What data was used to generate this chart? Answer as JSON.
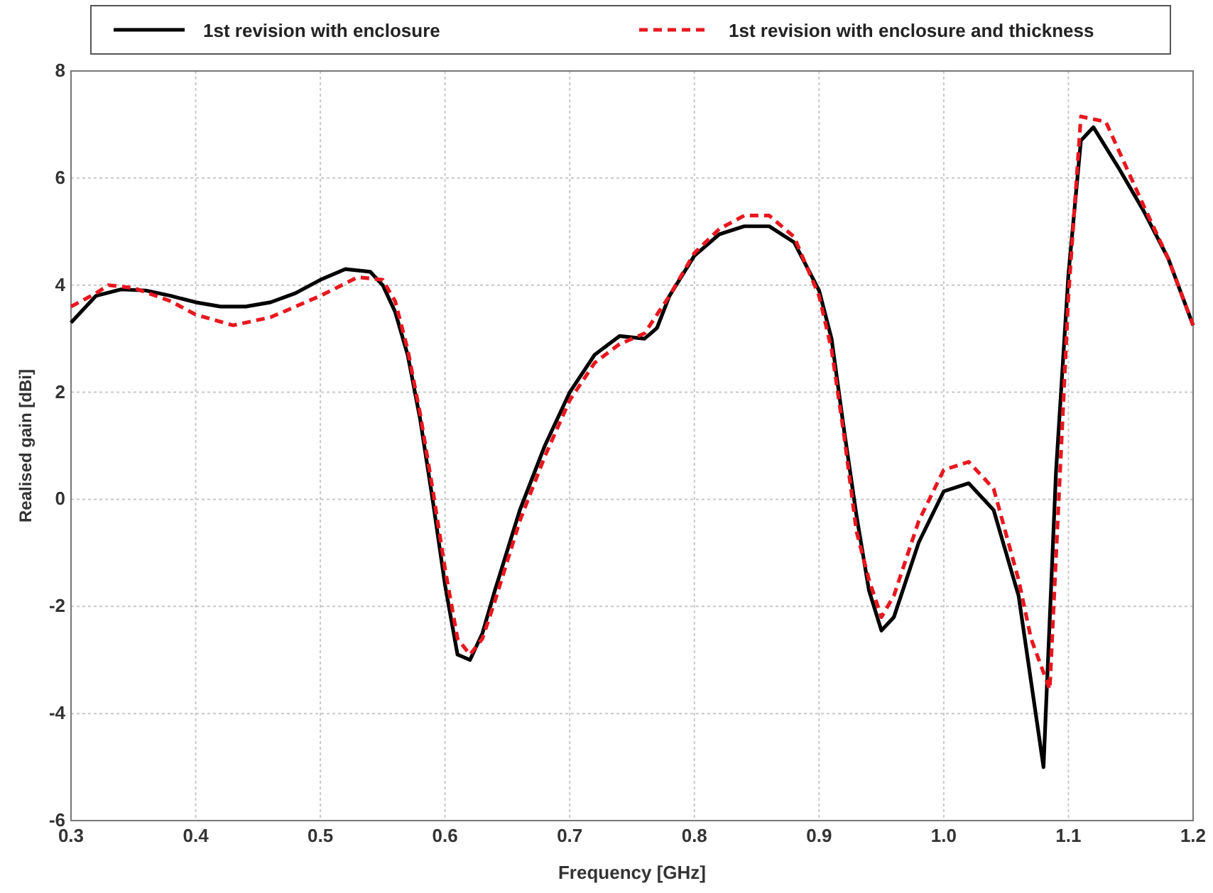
{
  "chart_data": {
    "type": "line",
    "xlabel": "Frequency [GHz]",
    "ylabel": "Realised gain [dBi]",
    "xlim": [
      0.3,
      1.2
    ],
    "ylim": [
      -6,
      8
    ],
    "xticks": [
      0.3,
      0.4,
      0.5,
      0.6,
      0.7,
      0.8,
      0.9,
      {
        "value": 1.0,
        "label": "1.0"
      },
      1.1,
      1.2
    ],
    "yticks": [
      -6,
      -4,
      -2,
      0,
      2,
      4,
      6,
      8
    ],
    "grid": true,
    "legend": "top",
    "marker": "none",
    "series": [
      {
        "name": "1st revision with enclosure",
        "color": "#000000",
        "line_style": "solid",
        "x": [
          0.3,
          0.32,
          0.34,
          0.36,
          0.38,
          0.4,
          0.42,
          0.44,
          0.46,
          0.48,
          0.5,
          0.52,
          0.54,
          0.55,
          0.56,
          0.57,
          0.58,
          0.59,
          0.6,
          0.61,
          0.62,
          0.63,
          0.64,
          0.66,
          0.68,
          0.7,
          0.72,
          0.74,
          0.76,
          0.77,
          0.78,
          0.8,
          0.82,
          0.84,
          0.86,
          0.88,
          0.9,
          0.91,
          0.92,
          0.93,
          0.94,
          0.95,
          0.96,
          0.98,
          1.0,
          1.02,
          1.04,
          1.06,
          1.08,
          1.09,
          1.1,
          1.11,
          1.12,
          1.14,
          1.16,
          1.18,
          1.2
        ],
        "values": [
          3.3,
          3.8,
          3.92,
          3.9,
          3.8,
          3.68,
          3.6,
          3.6,
          3.68,
          3.85,
          4.1,
          4.3,
          4.25,
          4.0,
          3.5,
          2.7,
          1.5,
          0.0,
          -1.6,
          -2.9,
          -3.0,
          -2.5,
          -1.7,
          -0.2,
          1.0,
          2.0,
          2.7,
          3.05,
          3.0,
          3.2,
          3.8,
          4.55,
          4.95,
          5.1,
          5.1,
          4.8,
          3.9,
          3.0,
          1.3,
          -0.3,
          -1.7,
          -2.45,
          -2.2,
          -0.8,
          0.15,
          0.3,
          -0.2,
          -1.8,
          -5.0,
          0.5,
          4.2,
          6.7,
          6.95,
          6.2,
          5.4,
          4.5,
          3.25
        ]
      },
      {
        "name": "1st revision with enclosure and thickness",
        "color": "#e8171f",
        "line_style": "dashed",
        "x": [
          0.3,
          0.32,
          0.33,
          0.35,
          0.38,
          0.4,
          0.43,
          0.46,
          0.5,
          0.53,
          0.55,
          0.56,
          0.57,
          0.58,
          0.59,
          0.6,
          0.61,
          0.62,
          0.63,
          0.64,
          0.66,
          0.68,
          0.7,
          0.72,
          0.74,
          0.76,
          0.78,
          0.8,
          0.82,
          0.84,
          0.86,
          0.88,
          0.9,
          0.91,
          0.92,
          0.93,
          0.94,
          0.95,
          0.96,
          0.98,
          1.0,
          1.02,
          1.04,
          1.06,
          1.07,
          1.085,
          1.1,
          1.11,
          1.13,
          1.16,
          1.18,
          1.2
        ],
        "values": [
          3.6,
          3.85,
          4.0,
          3.95,
          3.7,
          3.45,
          3.25,
          3.4,
          3.8,
          4.15,
          4.1,
          3.7,
          2.8,
          1.6,
          0.2,
          -1.3,
          -2.6,
          -2.9,
          -2.6,
          -1.9,
          -0.4,
          0.8,
          1.85,
          2.55,
          2.9,
          3.1,
          3.8,
          4.6,
          5.05,
          5.3,
          5.3,
          4.9,
          3.8,
          2.8,
          1.2,
          -0.6,
          -1.5,
          -2.2,
          -1.8,
          -0.4,
          0.55,
          0.7,
          0.2,
          -1.5,
          -2.6,
          -3.55,
          3.8,
          7.15,
          7.05,
          5.5,
          4.5,
          3.25
        ]
      }
    ]
  }
}
